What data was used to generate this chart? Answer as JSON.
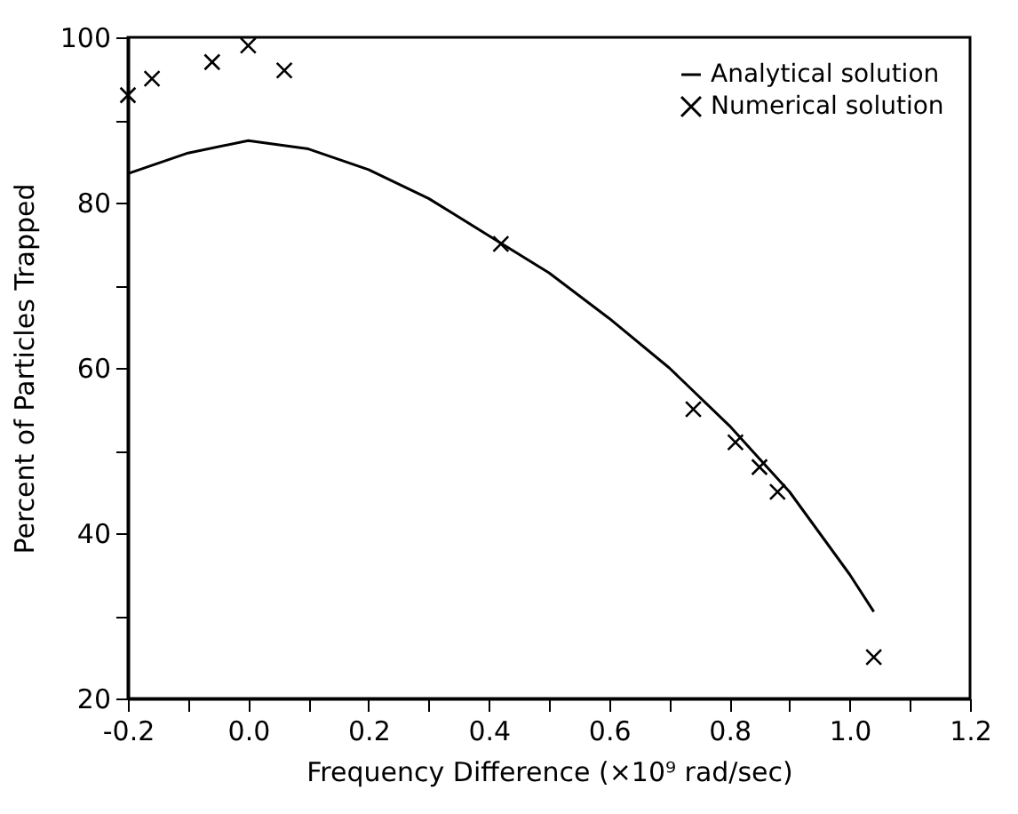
{
  "chart_data": {
    "type": "scatter",
    "xlabel": "Frequency Difference (×10⁹ rad/sec)",
    "ylabel": "Percent of Particles Trapped",
    "xlim": [
      -0.2,
      1.2
    ],
    "ylim": [
      20,
      100
    ],
    "xticks": [
      {
        "value": -0.2,
        "label": "-0.2"
      },
      {
        "value": -0.1,
        "label": null
      },
      {
        "value": 0,
        "label": "0.0"
      },
      {
        "value": 0.1,
        "label": null
      },
      {
        "value": 0.2,
        "label": "0.2"
      },
      {
        "value": 0.3,
        "label": null
      },
      {
        "value": 0.4,
        "label": "0.4"
      },
      {
        "value": 0.5,
        "label": null
      },
      {
        "value": 0.6,
        "label": "0.6"
      },
      {
        "value": 0.7,
        "label": null
      },
      {
        "value": 0.8,
        "label": "0.8"
      },
      {
        "value": 0.9,
        "label": null
      },
      {
        "value": 1,
        "label": "1.0"
      },
      {
        "value": 1.1,
        "label": null
      },
      {
        "value": 1.2,
        "label": "1.2"
      }
    ],
    "yticks": [
      20,
      {
        "value": 30,
        "label": null
      },
      40,
      {
        "value": 50,
        "label": null
      },
      60,
      {
        "value": 70,
        "label": null
      },
      80,
      {
        "value": 90,
        "label": null
      },
      100
    ],
    "legend": "top right",
    "grid": false,
    "series": [
      {
        "name": "Analytical solution",
        "type": "line",
        "marker": "none",
        "color": "#000000",
        "x": [
          -0.2,
          -0.1,
          0.0,
          0.1,
          0.2,
          0.3,
          0.4,
          0.5,
          0.6,
          0.7,
          0.8,
          0.9,
          1.0,
          1.04
        ],
        "values": [
          83.5,
          86,
          87.5,
          86.5,
          84,
          80.5,
          76,
          71.5,
          66,
          60,
          53,
          45,
          35,
          30.5
        ]
      },
      {
        "name": "Numerical solution",
        "marker": "cross",
        "color": "#000000",
        "x": [
          -0.2,
          -0.16,
          -0.06,
          0.0,
          0.06,
          0.42,
          0.74,
          0.81,
          0.85,
          0.88,
          1.04
        ],
        "values": [
          93,
          95,
          97,
          99,
          96,
          75,
          55,
          51,
          48,
          45,
          25
        ]
      }
    ]
  }
}
